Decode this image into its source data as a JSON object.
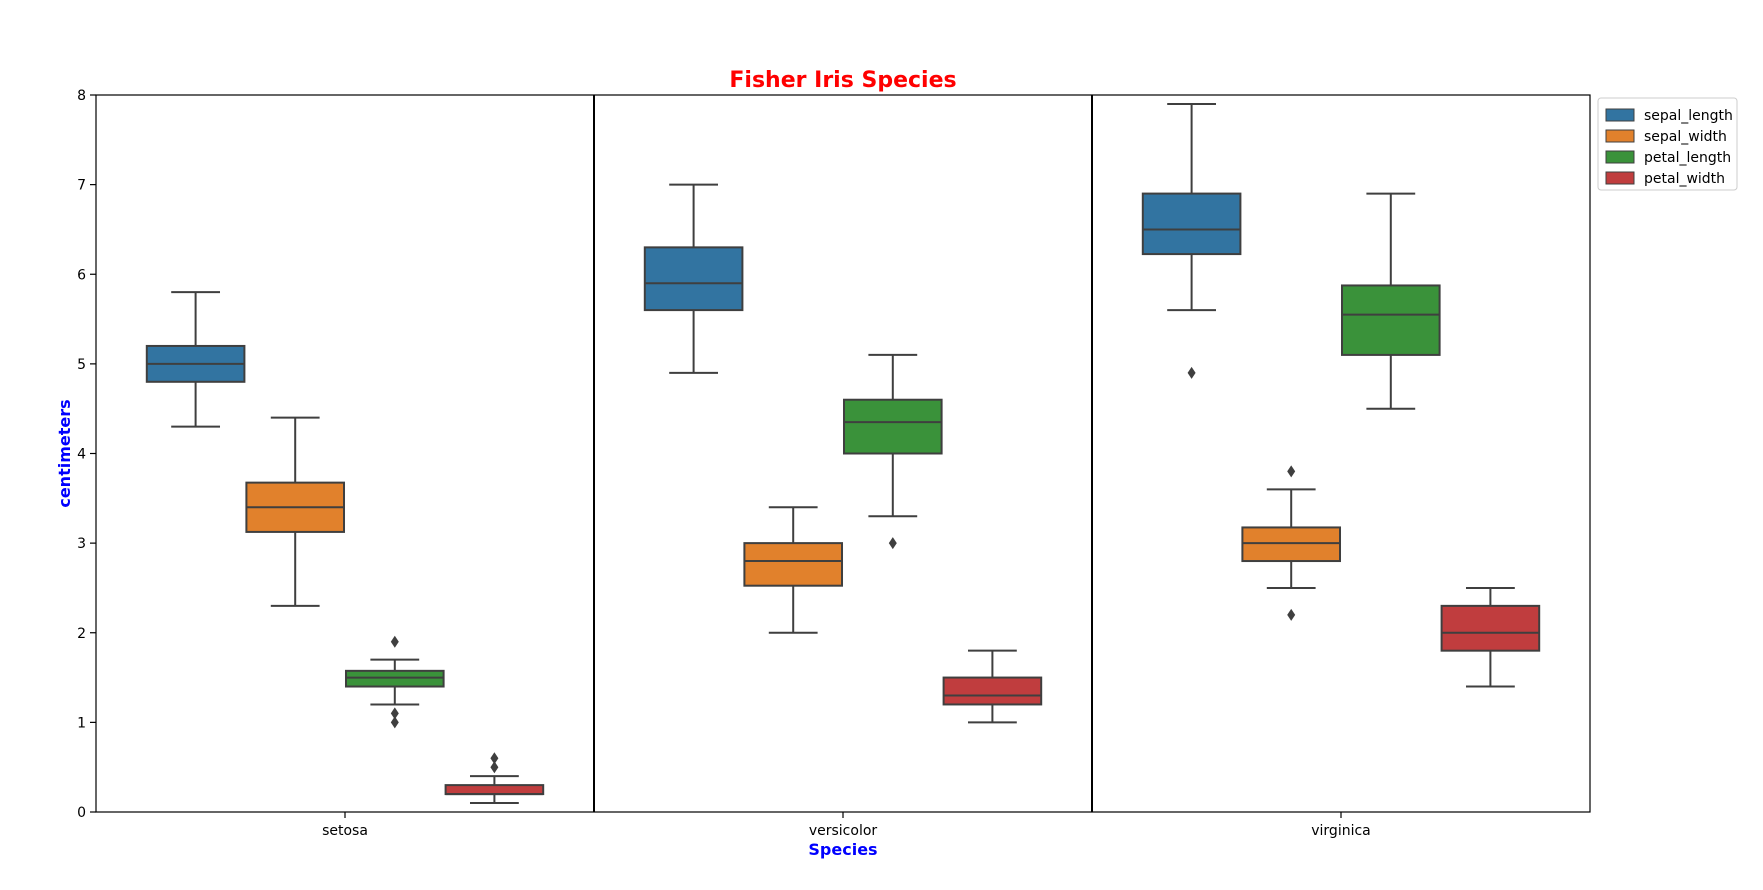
{
  "chart_data": {
    "type": "box",
    "title": "Fisher Iris Species",
    "title_color": "#ff0000",
    "xlabel": "Species",
    "ylabel": "centimeters",
    "axis_label_color": "#0000ff",
    "ylim": [
      0,
      8
    ],
    "yticks": [
      "0",
      "1",
      "2",
      "3",
      "4",
      "5",
      "6",
      "7",
      "8"
    ],
    "grid": false,
    "legend_position": "upper-right-outside",
    "categories": [
      "setosa",
      "versicolor",
      "virginica"
    ],
    "series": [
      {
        "name": "sepal_length",
        "color": "#3274a1",
        "boxes": [
          {
            "whisker_low": 4.3,
            "q1": 4.8,
            "median": 5.0,
            "q3": 5.2,
            "whisker_high": 5.8,
            "outliers": []
          },
          {
            "whisker_low": 4.9,
            "q1": 5.6,
            "median": 5.9,
            "q3": 6.3,
            "whisker_high": 7.0,
            "outliers": []
          },
          {
            "whisker_low": 5.6,
            "q1": 6.225,
            "median": 6.5,
            "q3": 6.9,
            "whisker_high": 7.9,
            "outliers": [
              4.9
            ]
          }
        ]
      },
      {
        "name": "sepal_width",
        "color": "#e1812c",
        "boxes": [
          {
            "whisker_low": 2.3,
            "q1": 3.125,
            "median": 3.4,
            "q3": 3.675,
            "whisker_high": 4.4,
            "outliers": []
          },
          {
            "whisker_low": 2.0,
            "q1": 2.525,
            "median": 2.8,
            "q3": 3.0,
            "whisker_high": 3.4,
            "outliers": []
          },
          {
            "whisker_low": 2.5,
            "q1": 2.8,
            "median": 3.0,
            "q3": 3.175,
            "whisker_high": 3.6,
            "outliers": [
              3.8,
              2.2
            ]
          }
        ]
      },
      {
        "name": "petal_length",
        "color": "#3a923a",
        "boxes": [
          {
            "whisker_low": 1.2,
            "q1": 1.4,
            "median": 1.5,
            "q3": 1.575,
            "whisker_high": 1.7,
            "outliers": [
              1.9,
              1.1,
              1.0
            ]
          },
          {
            "whisker_low": 3.3,
            "q1": 4.0,
            "median": 4.35,
            "q3": 4.6,
            "whisker_high": 5.1,
            "outliers": [
              3.0
            ]
          },
          {
            "whisker_low": 4.5,
            "q1": 5.1,
            "median": 5.55,
            "q3": 5.875,
            "whisker_high": 6.9,
            "outliers": []
          }
        ]
      },
      {
        "name": "petal_width",
        "color": "#c03d3e",
        "boxes": [
          {
            "whisker_low": 0.1,
            "q1": 0.2,
            "median": 0.2,
            "q3": 0.3,
            "whisker_high": 0.4,
            "outliers": [
              0.6,
              0.5
            ]
          },
          {
            "whisker_low": 1.0,
            "q1": 1.2,
            "median": 1.3,
            "q3": 1.5,
            "whisker_high": 1.8,
            "outliers": []
          },
          {
            "whisker_low": 1.4,
            "q1": 1.8,
            "median": 2.0,
            "q3": 2.3,
            "whisker_high": 2.5,
            "outliers": []
          }
        ]
      }
    ]
  }
}
